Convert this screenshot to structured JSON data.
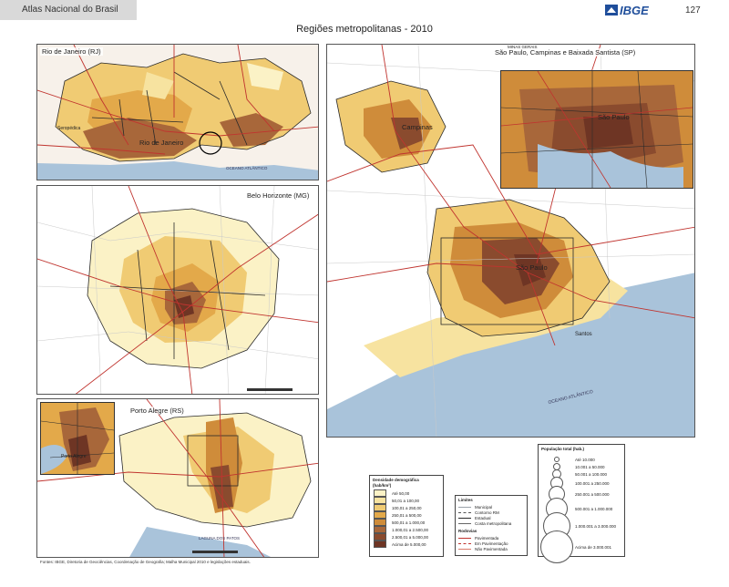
{
  "header": {
    "book_title": "Atlas Nacional do Brasil",
    "publisher_logo": "IBGE",
    "page_number": "127"
  },
  "title": "Regiões metropolitanas - 2010",
  "colors": {
    "density": [
      "#fbf2c6",
      "#f7e3a0",
      "#f0cb73",
      "#e3a94a",
      "#cf8c3a",
      "#a8673a",
      "#8a4b2e",
      "#6e3524"
    ],
    "water": "#a9c3da",
    "road_federal": "#c0342f",
    "road_state": "#d97b6b",
    "limit_municipal": "#9aa2a9",
    "limit_metro": "#2a2a2a"
  },
  "panels": [
    {
      "id": "rj",
      "label": "Rio de Janeiro (RJ)",
      "places": [
        "Rio de Janeiro",
        "Seropédica"
      ]
    },
    {
      "id": "bh",
      "label": "Belo Horizonte (MG)",
      "places": []
    },
    {
      "id": "poa",
      "label": "Porto Alegre (RS)",
      "places": [
        "Porto Alegre"
      ]
    },
    {
      "id": "sp",
      "label": "São Paulo, Campinas e Baixada Santista (SP)",
      "places": [
        "Campinas",
        "São Paulo",
        "Santos",
        "São Paulo"
      ]
    }
  ],
  "legend_density": {
    "title": "Densidade demográfica",
    "unit": "(hab/km²)",
    "classes": [
      "Até 50,00",
      "50,01 a 100,00",
      "100,01 a 250,00",
      "250,01 a 500,00",
      "500,01 a 1.000,00",
      "1.000,01 a 2.500,00",
      "2.500,01 a 5.000,00",
      "Acima de 5.000,00"
    ]
  },
  "legend_lines": {
    "limits_title": "Limites",
    "limits": [
      "Municipal",
      "Contorno RM",
      "Estadual",
      "Costa metropolitana"
    ],
    "roads_title": "Rodovias",
    "roads": [
      "Pavimentada",
      "Em Pavimentação",
      "Não Pavimentada"
    ]
  },
  "legend_population": {
    "title": "População total (hab.)",
    "classes": [
      "Até 10.000",
      "10.001 a 50.000",
      "50.001 a 100.000",
      "100.001 a 250.000",
      "250.001 a 500.000",
      "500.001 a 1.000.000",
      "1.000.001 a 3.000.000",
      "Acima de 3.000.001"
    ]
  },
  "map_text": {
    "ocean": "OCEANO ATLÂNTICO",
    "lagoon": "LAGUNA DOS PATOS",
    "state": "MINAS GERAIS"
  },
  "footer": "Fontes: IBGE, Diretoria de Geociências, Coordenação de Geografia; Malha Municipal 2010 e legislações estaduais."
}
